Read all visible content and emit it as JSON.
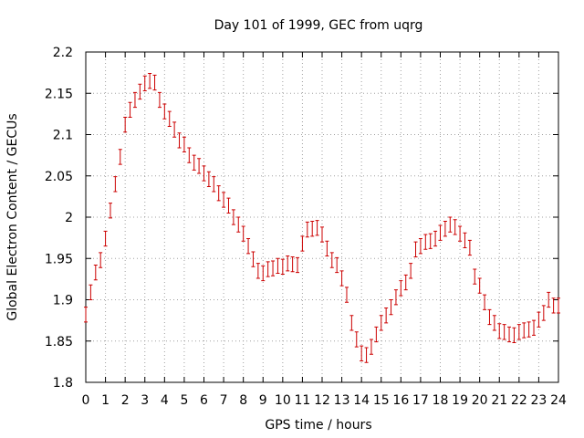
{
  "chart_data": {
    "type": "scatter",
    "title": "Day 101 of 1999, GEC from uqrg",
    "xlabel": "GPS time / hours",
    "ylabel": "Global Electron Content / GECUs",
    "xlim": [
      0,
      24
    ],
    "ylim": [
      1.8,
      2.2
    ],
    "grid": true,
    "xticks": [
      "0",
      "1",
      "2",
      "3",
      "4",
      "5",
      "6",
      "7",
      "8",
      "9",
      "10",
      "11",
      "12",
      "13",
      "14",
      "15",
      "16",
      "17",
      "18",
      "19",
      "20",
      "21",
      "22",
      "23",
      "24"
    ],
    "yticks": [
      "1.8",
      "1.85",
      "1.9",
      "1.95",
      "2",
      "2.05",
      "2.1",
      "2.15",
      "2.2"
    ],
    "marker_color": "#cc0000",
    "series": [
      {
        "x": [
          0.0,
          0.25,
          0.5,
          0.75,
          1.0,
          1.25,
          1.5,
          1.75,
          2.0,
          2.25,
          2.5,
          2.75,
          3.0,
          3.25,
          3.5,
          3.75,
          4.0,
          4.25,
          4.5,
          4.75,
          5.0,
          5.25,
          5.5,
          5.75,
          6.0,
          6.25,
          6.5,
          6.75,
          7.0,
          7.25,
          7.5,
          7.75,
          8.0,
          8.25,
          8.5,
          8.75,
          9.0,
          9.25,
          9.5,
          9.75,
          10.0,
          10.25,
          10.5,
          10.75,
          11.0,
          11.25,
          11.5,
          11.75,
          12.0,
          12.25,
          12.5,
          12.75,
          13.0,
          13.25,
          13.5,
          13.75,
          14.0,
          14.25,
          14.5,
          14.75,
          15.0,
          15.25,
          15.5,
          15.75,
          16.0,
          16.25,
          16.5,
          16.75,
          17.0,
          17.25,
          17.5,
          17.75,
          18.0,
          18.25,
          18.5,
          18.75,
          19.0,
          19.25,
          19.5,
          19.75,
          20.0,
          20.25,
          20.5,
          20.75,
          21.0,
          21.25,
          21.5,
          21.75,
          22.0,
          22.25,
          22.5,
          22.75,
          23.0,
          23.25,
          23.5,
          23.75,
          24.0
        ],
        "y": [
          1.882,
          1.909,
          1.933,
          1.948,
          1.974,
          2.008,
          2.04,
          2.073,
          2.112,
          2.13,
          2.142,
          2.152,
          2.162,
          2.165,
          2.163,
          2.142,
          2.128,
          2.119,
          2.106,
          2.093,
          2.088,
          2.075,
          2.066,
          2.062,
          2.053,
          2.046,
          2.04,
          2.029,
          2.021,
          2.014,
          2.0,
          1.991,
          1.98,
          1.965,
          1.949,
          1.935,
          1.932,
          1.937,
          1.938,
          1.941,
          1.94,
          1.944,
          1.943,
          1.942,
          1.968,
          1.985,
          1.986,
          1.987,
          1.979,
          1.962,
          1.948,
          1.942,
          1.926,
          1.906,
          1.872,
          1.852,
          1.835,
          1.833,
          1.843,
          1.858,
          1.872,
          1.881,
          1.891,
          1.903,
          1.914,
          1.921,
          1.935,
          1.961,
          1.965,
          1.97,
          1.971,
          1.974,
          1.981,
          1.986,
          1.991,
          1.988,
          1.98,
          1.972,
          1.963,
          1.928,
          1.917,
          1.897,
          1.879,
          1.872,
          1.862,
          1.861,
          1.858,
          1.857,
          1.861,
          1.863,
          1.864,
          1.866,
          1.876,
          1.884,
          1.9,
          1.893,
          1.893
        ],
        "err": 0.009
      }
    ]
  }
}
